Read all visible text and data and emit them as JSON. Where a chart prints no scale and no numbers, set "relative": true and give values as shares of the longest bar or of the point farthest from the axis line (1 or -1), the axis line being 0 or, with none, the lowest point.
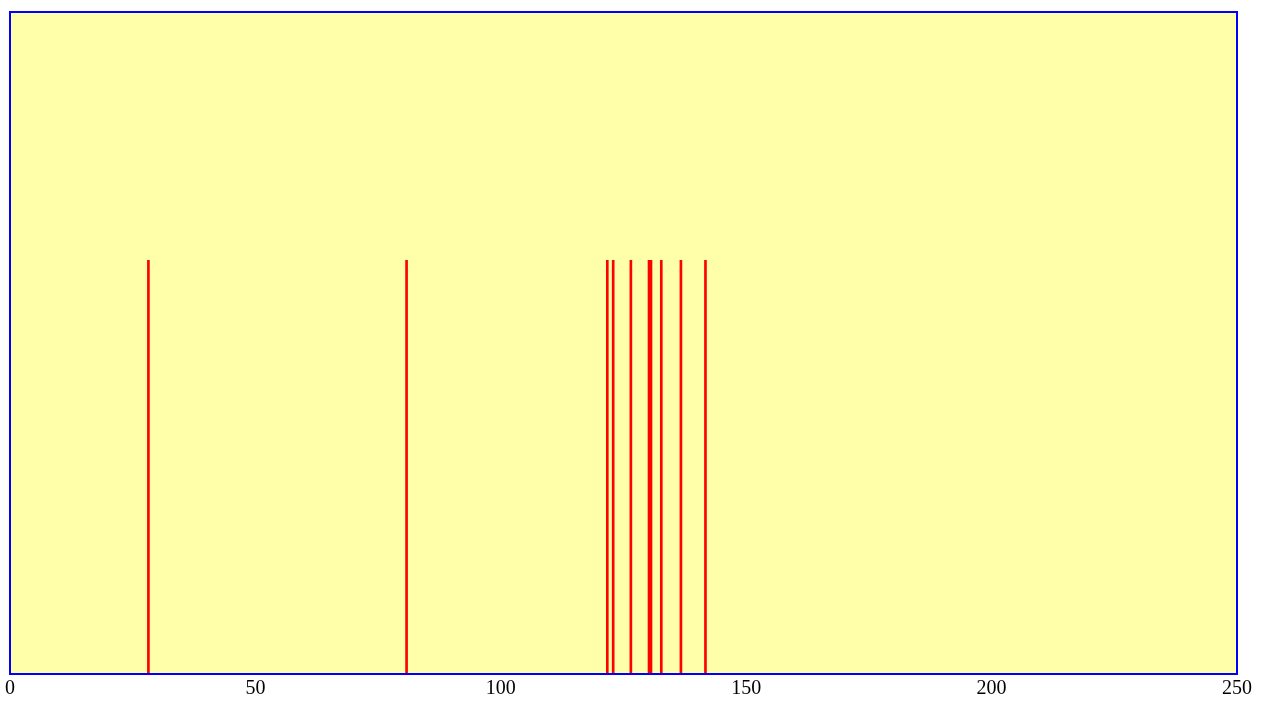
{
  "chart_data": {
    "type": "bar",
    "relative": true,
    "x": [
      28.2,
      80.8,
      121.7,
      122.9,
      126.5,
      130.2,
      130.6,
      132.7,
      136.7,
      141.7
    ],
    "values": [
      1,
      1,
      1,
      1,
      1,
      1,
      1,
      1,
      1,
      1
    ],
    "color": "#ff0000",
    "xlim": [
      0,
      250
    ],
    "xticks": [
      0,
      50,
      100,
      150,
      200,
      250
    ],
    "grid": false,
    "legend": false
  }
}
